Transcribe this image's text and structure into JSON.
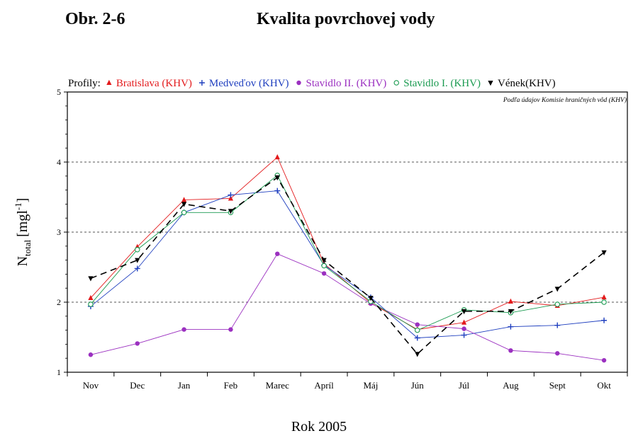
{
  "figure_label": "Obr. 2-6",
  "figure_title": "Kvalita povrchovej vody",
  "chart_data": {
    "type": "line",
    "xlabel": "Rok 2005",
    "ylabel_main": "N",
    "ylabel_sub": "total",
    "ylabel_unit": "[mgl",
    "ylabel_sup": "-1",
    "ylabel_close": "]",
    "ylim": [
      1,
      5
    ],
    "yticks": [
      "1",
      "2",
      "3",
      "4",
      "5"
    ],
    "grid": "horizontal dashed at 2, 3, 4",
    "categories": [
      "Nov",
      "Dec",
      "Jan",
      "Feb",
      "Marec",
      "Apríl",
      "Máj",
      "Jún",
      "Júl",
      "Aug",
      "Sept",
      "Okt"
    ],
    "legend_prefix": "Profily:",
    "legend_position": "top",
    "source_note": "Podľa údajov Komisie hraničných vôd (KHV)",
    "series": [
      {
        "name": "Bratislava (KHV)",
        "color": "#e31a1c",
        "marker": "triangle-up",
        "line": "solid",
        "values": [
          2.06,
          2.79,
          3.46,
          3.48,
          4.07,
          2.55,
          1.99,
          1.61,
          1.71,
          2.01,
          1.95,
          2.07
        ]
      },
      {
        "name": "Medveďov (KHV)",
        "color": "#1f3fbf",
        "marker": "plus",
        "line": "solid",
        "values": [
          1.94,
          2.48,
          3.28,
          3.53,
          3.59,
          2.53,
          2.07,
          1.49,
          1.53,
          1.65,
          1.67,
          1.74
        ]
      },
      {
        "name": "Stavidlo II. (KHV)",
        "color": "#9b30c0",
        "marker": "filled-circle",
        "line": "solid",
        "values": [
          1.25,
          1.41,
          1.61,
          1.61,
          2.69,
          2.41,
          1.98,
          1.68,
          1.62,
          1.31,
          1.27,
          1.17
        ]
      },
      {
        "name": "Stavidlo I. (KHV)",
        "color": "#1a9a50",
        "marker": "open-circle",
        "line": "solid",
        "values": [
          1.97,
          2.75,
          3.28,
          3.28,
          3.81,
          2.52,
          2.01,
          1.6,
          1.89,
          1.85,
          1.97,
          2.0
        ]
      },
      {
        "name": "Vének(KHV)",
        "color": "#000000",
        "marker": "triangle-down",
        "line": "dashed",
        "values": [
          2.34,
          2.6,
          3.4,
          3.3,
          3.78,
          2.6,
          2.06,
          1.26,
          1.87,
          1.87,
          2.19,
          2.71
        ]
      }
    ]
  }
}
